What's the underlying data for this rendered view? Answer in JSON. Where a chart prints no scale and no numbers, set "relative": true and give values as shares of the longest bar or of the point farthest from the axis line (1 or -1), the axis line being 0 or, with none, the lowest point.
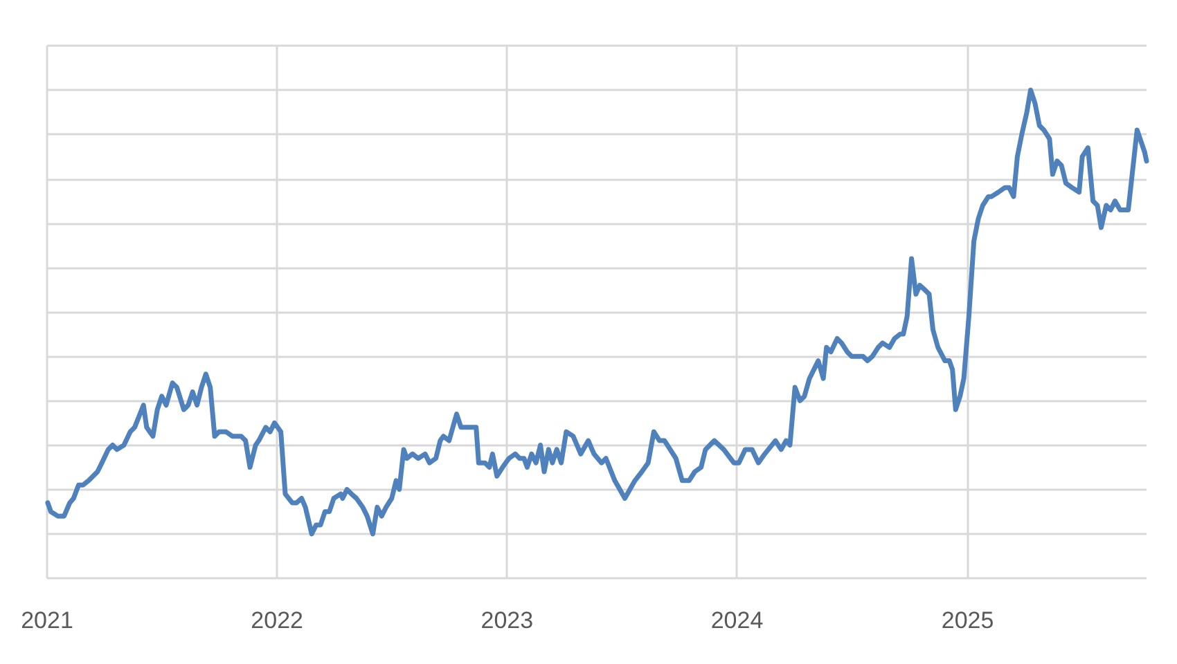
{
  "chart_data": {
    "type": "line",
    "relative": true,
    "color": "#4f81bd",
    "grid": true,
    "marker": "none",
    "line_style": "solid",
    "xlim": [
      "2021-01-01",
      "2025-10-12"
    ],
    "xticks": [
      "2021",
      "2022",
      "2023",
      "2024",
      "2025"
    ],
    "x": [
      "2021-01-02",
      "2021-01-07",
      "2021-01-18",
      "2021-01-28",
      "2021-02-06",
      "2021-02-12",
      "2021-02-20",
      "2021-02-27",
      "2021-03-08",
      "2021-03-22",
      "2021-03-29",
      "2021-04-08",
      "2021-04-15",
      "2021-04-22",
      "2021-05-03",
      "2021-05-13",
      "2021-05-20",
      "2021-06-03",
      "2021-06-08",
      "2021-06-18",
      "2021-06-25",
      "2021-07-02",
      "2021-07-09",
      "2021-07-19",
      "2021-07-26",
      "2021-08-06",
      "2021-08-13",
      "2021-08-20",
      "2021-08-27",
      "2021-09-03",
      "2021-09-10",
      "2021-09-17",
      "2021-09-24",
      "2021-10-01",
      "2021-10-12",
      "2021-10-22",
      "2021-10-29",
      "2021-11-05",
      "2021-11-12",
      "2021-11-19",
      "2021-11-28",
      "2021-12-03",
      "2021-12-14",
      "2021-12-21",
      "2021-12-28",
      "2022-01-02",
      "2022-01-07",
      "2022-01-14",
      "2022-01-25",
      "2022-02-01",
      "2022-02-09",
      "2022-02-15",
      "2022-02-25",
      "2022-03-04",
      "2022-03-11",
      "2022-03-18",
      "2022-03-25",
      "2022-04-01",
      "2022-04-12",
      "2022-04-15",
      "2022-04-22",
      "2022-04-29",
      "2022-05-07",
      "2022-05-17",
      "2022-05-24",
      "2022-06-02",
      "2022-06-09",
      "2022-06-16",
      "2022-06-23",
      "2022-07-02",
      "2022-07-09",
      "2022-07-14",
      "2022-07-21",
      "2022-07-26",
      "2022-08-04",
      "2022-08-13",
      "2022-08-24",
      "2022-08-31",
      "2022-09-10",
      "2022-09-17",
      "2022-09-22",
      "2022-10-01",
      "2022-10-13",
      "2022-10-20",
      "2022-10-29",
      "2022-11-06",
      "2022-11-13",
      "2022-11-17",
      "2022-11-27",
      "2022-12-04",
      "2022-12-09",
      "2022-12-16",
      "2022-12-25",
      "2023-01-04",
      "2023-01-14",
      "2023-01-21",
      "2023-01-28",
      "2023-02-02",
      "2023-02-09",
      "2023-02-16",
      "2023-02-23",
      "2023-03-01",
      "2023-03-08",
      "2023-03-14",
      "2023-03-21",
      "2023-03-28",
      "2023-04-05",
      "2023-04-16",
      "2023-04-28",
      "2023-05-10",
      "2023-05-19",
      "2023-05-31",
      "2023-06-07",
      "2023-06-21",
      "2023-07-07",
      "2023-07-23",
      "2023-08-03",
      "2023-08-13",
      "2023-08-22",
      "2023-08-31",
      "2023-09-08",
      "2023-09-17",
      "2023-09-26",
      "2023-10-06",
      "2023-10-17",
      "2023-10-26",
      "2023-11-05",
      "2023-11-12",
      "2023-11-26",
      "2023-12-11",
      "2023-12-27",
      "2024-01-04",
      "2024-01-14",
      "2024-01-25",
      "2024-02-04",
      "2024-02-14",
      "2024-03-02",
      "2024-03-11",
      "2024-03-19",
      "2024-03-25",
      "2024-04-02",
      "2024-04-10",
      "2024-04-17",
      "2024-04-25",
      "2024-05-02",
      "2024-05-09",
      "2024-05-17",
      "2024-05-22",
      "2024-05-29",
      "2024-06-08",
      "2024-06-15",
      "2024-06-24",
      "2024-07-01",
      "2024-07-12",
      "2024-07-19",
      "2024-07-26",
      "2024-08-03",
      "2024-08-12",
      "2024-08-19",
      "2024-08-30",
      "2024-09-07",
      "2024-09-16",
      "2024-09-21",
      "2024-09-27",
      "2024-10-04",
      "2024-10-11",
      "2024-10-17",
      "2024-10-25",
      "2024-11-01",
      "2024-11-07",
      "2024-11-15",
      "2024-11-26",
      "2024-12-03",
      "2024-12-08",
      "2024-12-13",
      "2024-12-20",
      "2024-12-26",
      "2025-01-03",
      "2025-01-11",
      "2025-01-18",
      "2025-01-25",
      "2025-02-03",
      "2025-02-08",
      "2025-02-19",
      "2025-03-01",
      "2025-03-08",
      "2025-03-15",
      "2025-03-21",
      "2025-03-28",
      "2025-04-05",
      "2025-04-11",
      "2025-04-18",
      "2025-04-25",
      "2025-05-02",
      "2025-05-11",
      "2025-05-16",
      "2025-05-23",
      "2025-05-30",
      "2025-06-06",
      "2025-06-16",
      "2025-06-27",
      "2025-07-02",
      "2025-07-11",
      "2025-07-19",
      "2025-07-26",
      "2025-08-01",
      "2025-08-09",
      "2025-08-16",
      "2025-08-23",
      "2025-08-31",
      "2025-09-13",
      "2025-09-27",
      "2025-10-09",
      "2025-10-12"
    ],
    "values": [
      0.07,
      0.05,
      0.04,
      0.04,
      0.07,
      0.08,
      0.11,
      0.11,
      0.12,
      0.14,
      0.16,
      0.19,
      0.2,
      0.19,
      0.2,
      0.23,
      0.24,
      0.29,
      0.24,
      0.22,
      0.28,
      0.31,
      0.29,
      0.34,
      0.33,
      0.28,
      0.29,
      0.32,
      0.29,
      0.33,
      0.36,
      0.33,
      0.22,
      0.23,
      0.23,
      0.22,
      0.22,
      0.22,
      0.21,
      0.15,
      0.2,
      0.21,
      0.24,
      0.23,
      0.25,
      0.24,
      0.23,
      0.09,
      0.07,
      0.07,
      0.08,
      0.06,
      0.0,
      0.02,
      0.02,
      0.05,
      0.05,
      0.08,
      0.09,
      0.08,
      0.1,
      0.09,
      0.08,
      0.06,
      0.04,
      0.0,
      0.06,
      0.04,
      0.06,
      0.08,
      0.12,
      0.1,
      0.19,
      0.17,
      0.18,
      0.17,
      0.18,
      0.16,
      0.17,
      0.21,
      0.22,
      0.21,
      0.27,
      0.24,
      0.24,
      0.24,
      0.24,
      0.16,
      0.16,
      0.15,
      0.18,
      0.13,
      0.15,
      0.17,
      0.18,
      0.17,
      0.17,
      0.15,
      0.18,
      0.16,
      0.2,
      0.14,
      0.19,
      0.16,
      0.19,
      0.16,
      0.23,
      0.22,
      0.18,
      0.21,
      0.18,
      0.16,
      0.17,
      0.12,
      0.08,
      0.12,
      0.14,
      0.16,
      0.23,
      0.21,
      0.21,
      0.19,
      0.17,
      0.12,
      0.12,
      0.14,
      0.15,
      0.19,
      0.21,
      0.19,
      0.16,
      0.16,
      0.19,
      0.19,
      0.16,
      0.18,
      0.21,
      0.19,
      0.21,
      0.2,
      0.33,
      0.3,
      0.31,
      0.35,
      0.37,
      0.39,
      0.35,
      0.42,
      0.41,
      0.44,
      0.43,
      0.41,
      0.4,
      0.4,
      0.4,
      0.39,
      0.4,
      0.42,
      0.43,
      0.42,
      0.44,
      0.45,
      0.45,
      0.49,
      0.62,
      0.54,
      0.56,
      0.55,
      0.54,
      0.46,
      0.42,
      0.39,
      0.39,
      0.37,
      0.28,
      0.31,
      0.35,
      0.49,
      0.66,
      0.71,
      0.74,
      0.76,
      0.76,
      0.77,
      0.78,
      0.78,
      0.76,
      0.85,
      0.9,
      0.95,
      1.0,
      0.97,
      0.92,
      0.91,
      0.89,
      0.81,
      0.84,
      0.83,
      0.79,
      0.78,
      0.77,
      0.85,
      0.87,
      0.75,
      0.74,
      0.69,
      0.74,
      0.73,
      0.75,
      0.73,
      0.73,
      0.91,
      0.86,
      0.84
    ]
  }
}
